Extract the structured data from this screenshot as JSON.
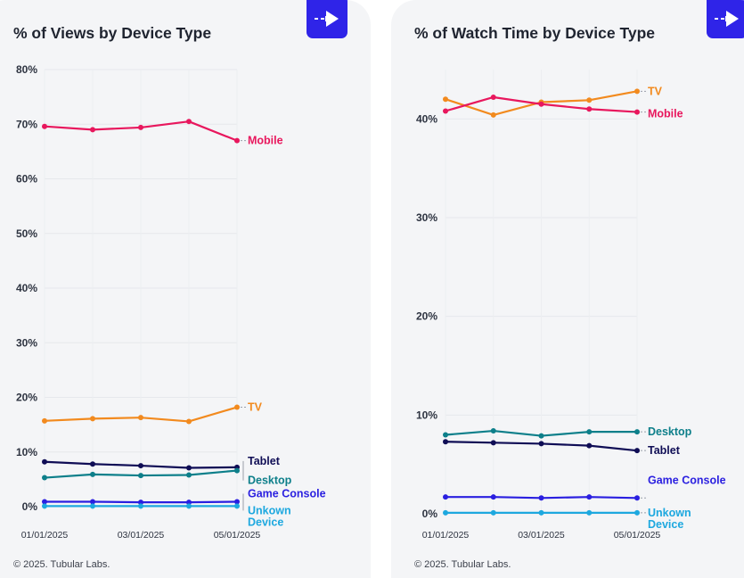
{
  "footer": "© 2025. Tubular Labs.",
  "colors": {
    "Mobile": "#e8175d",
    "TV": "#f28a1e",
    "Tablet": "#0f0d55",
    "Desktop": "#0d7f8a",
    "Game Console": "#2a1fe0",
    "Unkown Device": "#1da8df"
  },
  "chart_data": [
    {
      "type": "line",
      "title": "% of Views by Device Type",
      "x": [
        "01/01/2025",
        "02/01/2025",
        "03/01/2025",
        "04/01/2025",
        "05/01/2025"
      ],
      "xtick_labels": [
        "01/01/2025",
        "03/01/2025",
        "05/01/2025"
      ],
      "yticks": [
        "80%",
        "70%",
        "60%",
        "50%",
        "40%",
        "30%",
        "20%",
        "10%",
        "0%"
      ],
      "ylim": [
        0,
        80
      ],
      "series": [
        {
          "name": "Mobile",
          "label": [
            "Mobile"
          ],
          "values": [
            69.6,
            69.0,
            69.4,
            70.5,
            67.0
          ]
        },
        {
          "name": "TV",
          "label": [
            "TV"
          ],
          "values": [
            15.7,
            16.1,
            16.3,
            15.6,
            18.2
          ]
        },
        {
          "name": "Tablet",
          "label": [
            "Tablet"
          ],
          "values": [
            8.2,
            7.8,
            7.5,
            7.1,
            7.2
          ]
        },
        {
          "name": "Desktop",
          "label": [
            "Desktop"
          ],
          "values": [
            5.3,
            5.9,
            5.7,
            5.8,
            6.6
          ]
        },
        {
          "name": "Game Console",
          "label": [
            "Game Console"
          ],
          "values": [
            0.9,
            0.9,
            0.8,
            0.8,
            0.9
          ]
        },
        {
          "name": "Unkown Device",
          "label": [
            "Unkown",
            "Device"
          ],
          "values": [
            0.1,
            0.1,
            0.1,
            0.1,
            0.1
          ]
        }
      ]
    },
    {
      "type": "line",
      "title": "% of Watch Time by Device Type",
      "x": [
        "01/01/2025",
        "02/01/2025",
        "03/01/2025",
        "04/01/2025",
        "05/01/2025"
      ],
      "xtick_labels": [
        "01/01/2025",
        "03/01/2025",
        "05/01/2025"
      ],
      "yticks": [
        "40%",
        "30%",
        "20%",
        "10%",
        "0%"
      ],
      "ylim": [
        0,
        45
      ],
      "series": [
        {
          "name": "TV",
          "label": [
            "TV"
          ],
          "values": [
            42.0,
            40.4,
            41.7,
            41.9,
            42.8
          ]
        },
        {
          "name": "Mobile",
          "label": [
            "Mobile"
          ],
          "values": [
            40.8,
            42.2,
            41.5,
            41.0,
            40.7
          ]
        },
        {
          "name": "Desktop",
          "label": [
            "Desktop"
          ],
          "values": [
            8.0,
            8.4,
            7.9,
            8.3,
            8.3
          ]
        },
        {
          "name": "Tablet",
          "label": [
            "Tablet"
          ],
          "values": [
            7.3,
            7.2,
            7.1,
            6.9,
            6.4
          ]
        },
        {
          "name": "Game Console",
          "label": [
            "Game Console"
          ],
          "values": [
            1.7,
            1.7,
            1.6,
            1.7,
            1.6
          ]
        },
        {
          "name": "Unkown Device",
          "label": [
            "Unkown",
            "Device"
          ],
          "values": [
            0.1,
            0.1,
            0.1,
            0.1,
            0.1
          ]
        }
      ]
    }
  ]
}
